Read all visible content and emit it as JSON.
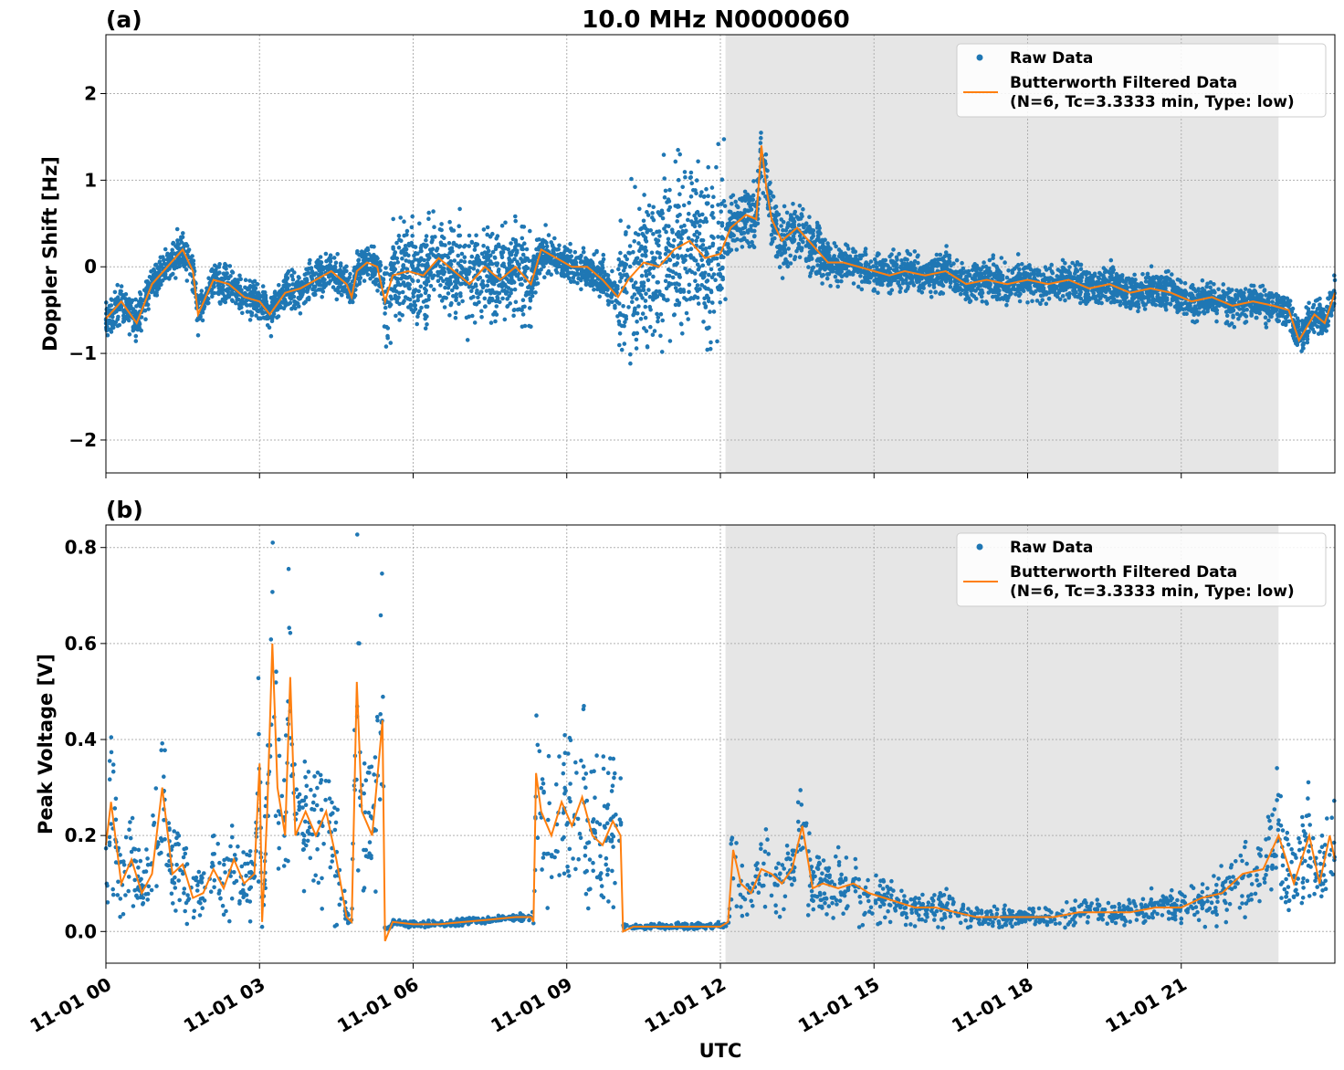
{
  "figure": {
    "title": "10.0 MHz N0000060",
    "xlabel": "UTC"
  },
  "legend": {
    "raw_label": "Raw Data",
    "filtered_label_line1": "Butterworth Filtered Data",
    "filtered_label_line2": "(N=6, Tc=3.3333 min, Type: low)",
    "placement": "top-right"
  },
  "colors": {
    "raw": "#1f77b4",
    "filtered": "#ff7f0e",
    "night_shading": "#e6e6e6",
    "grid": "#b0b0b0"
  },
  "chart_data": [
    {
      "type": "scatter",
      "panel_label": "(a)",
      "ylabel": "Doppler Shift [Hz]",
      "x_unit": "hours since 11-01 00 UTC",
      "xlim": [
        0,
        24
      ],
      "ylim": [
        -2.38,
        2.68
      ],
      "xticks": [
        0,
        3,
        6,
        9,
        12,
        15,
        18,
        21
      ],
      "xtick_labels": [
        "11-01 00",
        "11-01 03",
        "11-01 06",
        "11-01 09",
        "11-01 12",
        "11-01 15",
        "11-01 18",
        "11-01 21"
      ],
      "yticks": [
        -2,
        -1,
        0,
        1,
        2
      ],
      "ytick_labels": [
        "−2",
        "−1",
        "0",
        "1",
        "2"
      ],
      "grid": true,
      "shaded_interval": [
        12.1,
        22.9
      ],
      "series": [
        {
          "name": "Butterworth Filtered Data",
          "kind": "line",
          "points": [
            [
              0,
              -0.6
            ],
            [
              0.3,
              -0.4
            ],
            [
              0.6,
              -0.65
            ],
            [
              0.9,
              -0.2
            ],
            [
              1.2,
              0.0
            ],
            [
              1.5,
              0.2
            ],
            [
              1.7,
              -0.05
            ],
            [
              1.8,
              -0.55
            ],
            [
              2.1,
              -0.15
            ],
            [
              2.4,
              -0.2
            ],
            [
              2.7,
              -0.35
            ],
            [
              3.0,
              -0.4
            ],
            [
              3.2,
              -0.55
            ],
            [
              3.5,
              -0.3
            ],
            [
              3.8,
              -0.25
            ],
            [
              4.1,
              -0.15
            ],
            [
              4.4,
              -0.05
            ],
            [
              4.7,
              -0.2
            ],
            [
              4.8,
              -0.35
            ],
            [
              4.9,
              -0.05
            ],
            [
              5.1,
              0.05
            ],
            [
              5.3,
              0.0
            ],
            [
              5.45,
              -0.4
            ],
            [
              5.6,
              -0.1
            ],
            [
              5.9,
              -0.05
            ],
            [
              6.2,
              -0.1
            ],
            [
              6.5,
              0.1
            ],
            [
              6.8,
              -0.05
            ],
            [
              7.1,
              -0.2
            ],
            [
              7.4,
              0.0
            ],
            [
              7.7,
              -0.15
            ],
            [
              8.0,
              0.0
            ],
            [
              8.3,
              -0.2
            ],
            [
              8.5,
              0.2
            ],
            [
              8.8,
              0.1
            ],
            [
              9.1,
              0.0
            ],
            [
              9.4,
              0.0
            ],
            [
              9.7,
              -0.15
            ],
            [
              10.0,
              -0.35
            ],
            [
              10.2,
              -0.15
            ],
            [
              10.5,
              0.05
            ],
            [
              10.8,
              0.0
            ],
            [
              11.1,
              0.2
            ],
            [
              11.4,
              0.3
            ],
            [
              11.7,
              0.1
            ],
            [
              12.0,
              0.15
            ],
            [
              12.2,
              0.45
            ],
            [
              12.5,
              0.6
            ],
            [
              12.7,
              0.55
            ],
            [
              12.8,
              1.4
            ],
            [
              12.9,
              0.9
            ],
            [
              13.0,
              0.55
            ],
            [
              13.2,
              0.3
            ],
            [
              13.5,
              0.45
            ],
            [
              13.8,
              0.25
            ],
            [
              14.1,
              0.05
            ],
            [
              14.4,
              0.05
            ],
            [
              14.7,
              0.0
            ],
            [
              15.0,
              -0.05
            ],
            [
              15.3,
              -0.1
            ],
            [
              15.6,
              -0.05
            ],
            [
              16.0,
              -0.1
            ],
            [
              16.4,
              -0.05
            ],
            [
              16.8,
              -0.2
            ],
            [
              17.2,
              -0.15
            ],
            [
              17.6,
              -0.2
            ],
            [
              18.0,
              -0.15
            ],
            [
              18.4,
              -0.2
            ],
            [
              18.8,
              -0.15
            ],
            [
              19.2,
              -0.25
            ],
            [
              19.6,
              -0.2
            ],
            [
              20.0,
              -0.3
            ],
            [
              20.4,
              -0.25
            ],
            [
              20.8,
              -0.3
            ],
            [
              21.2,
              -0.4
            ],
            [
              21.6,
              -0.35
            ],
            [
              22.0,
              -0.45
            ],
            [
              22.4,
              -0.4
            ],
            [
              22.8,
              -0.45
            ],
            [
              23.1,
              -0.5
            ],
            [
              23.3,
              -0.85
            ],
            [
              23.6,
              -0.55
            ],
            [
              23.8,
              -0.65
            ],
            [
              24.0,
              -0.3
            ]
          ]
        }
      ]
    },
    {
      "type": "scatter",
      "panel_label": "(b)",
      "ylabel": "Peak Voltage [V]",
      "x_unit": "hours since 11-01 00 UTC",
      "xlim": [
        0,
        24
      ],
      "ylim": [
        -0.066,
        0.847
      ],
      "xticks": [
        0,
        3,
        6,
        9,
        12,
        15,
        18,
        21
      ],
      "xtick_labels": [
        "11-01 00",
        "11-01 03",
        "11-01 06",
        "11-01 09",
        "11-01 12",
        "11-01 15",
        "11-01 18",
        "11-01 21"
      ],
      "yticks": [
        0.0,
        0.2,
        0.4,
        0.6,
        0.8
      ],
      "ytick_labels": [
        "0.0",
        "0.2",
        "0.4",
        "0.6",
        "0.8"
      ],
      "grid": true,
      "shaded_interval": [
        12.1,
        22.9
      ],
      "series": [
        {
          "name": "Butterworth Filtered Data",
          "kind": "line",
          "points": [
            [
              0,
              0.18
            ],
            [
              0.1,
              0.27
            ],
            [
              0.3,
              0.1
            ],
            [
              0.5,
              0.15
            ],
            [
              0.7,
              0.08
            ],
            [
              0.9,
              0.12
            ],
            [
              1.1,
              0.3
            ],
            [
              1.3,
              0.12
            ],
            [
              1.5,
              0.14
            ],
            [
              1.7,
              0.07
            ],
            [
              1.9,
              0.08
            ],
            [
              2.1,
              0.13
            ],
            [
              2.3,
              0.09
            ],
            [
              2.5,
              0.15
            ],
            [
              2.7,
              0.1
            ],
            [
              2.9,
              0.12
            ],
            [
              3.0,
              0.35
            ],
            [
              3.05,
              0.02
            ],
            [
              3.15,
              0.25
            ],
            [
              3.25,
              0.6
            ],
            [
              3.35,
              0.3
            ],
            [
              3.5,
              0.2
            ],
            [
              3.6,
              0.53
            ],
            [
              3.7,
              0.2
            ],
            [
              3.9,
              0.25
            ],
            [
              4.1,
              0.2
            ],
            [
              4.3,
              0.25
            ],
            [
              4.5,
              0.15
            ],
            [
              4.7,
              0.03
            ],
            [
              4.8,
              0.02
            ],
            [
              4.9,
              0.52
            ],
            [
              5.0,
              0.25
            ],
            [
              5.2,
              0.2
            ],
            [
              5.4,
              0.44
            ],
            [
              5.45,
              -0.02
            ],
            [
              5.6,
              0.02
            ],
            [
              6.0,
              0.015
            ],
            [
              6.5,
              0.015
            ],
            [
              7.0,
              0.02
            ],
            [
              7.5,
              0.025
            ],
            [
              8.0,
              0.03
            ],
            [
              8.3,
              0.03
            ],
            [
              8.35,
              0.02
            ],
            [
              8.4,
              0.33
            ],
            [
              8.5,
              0.25
            ],
            [
              8.7,
              0.2
            ],
            [
              8.9,
              0.27
            ],
            [
              9.1,
              0.22
            ],
            [
              9.3,
              0.28
            ],
            [
              9.5,
              0.2
            ],
            [
              9.7,
              0.18
            ],
            [
              9.9,
              0.23
            ],
            [
              10.05,
              0.2
            ],
            [
              10.1,
              0.0
            ],
            [
              10.3,
              0.01
            ],
            [
              11.0,
              0.01
            ],
            [
              11.5,
              0.01
            ],
            [
              12.0,
              0.01
            ],
            [
              12.15,
              0.02
            ],
            [
              12.25,
              0.17
            ],
            [
              12.4,
              0.1
            ],
            [
              12.6,
              0.08
            ],
            [
              12.8,
              0.13
            ],
            [
              13.0,
              0.12
            ],
            [
              13.2,
              0.1
            ],
            [
              13.4,
              0.13
            ],
            [
              13.6,
              0.22
            ],
            [
              13.8,
              0.09
            ],
            [
              14.0,
              0.1
            ],
            [
              14.3,
              0.09
            ],
            [
              14.6,
              0.1
            ],
            [
              14.9,
              0.08
            ],
            [
              15.2,
              0.07
            ],
            [
              15.5,
              0.06
            ],
            [
              15.8,
              0.05
            ],
            [
              16.2,
              0.05
            ],
            [
              16.6,
              0.04
            ],
            [
              17.0,
              0.03
            ],
            [
              17.5,
              0.03
            ],
            [
              18.0,
              0.03
            ],
            [
              18.5,
              0.03
            ],
            [
              19.0,
              0.04
            ],
            [
              19.5,
              0.04
            ],
            [
              20.0,
              0.04
            ],
            [
              20.5,
              0.05
            ],
            [
              21.0,
              0.05
            ],
            [
              21.4,
              0.07
            ],
            [
              21.8,
              0.08
            ],
            [
              22.2,
              0.12
            ],
            [
              22.6,
              0.13
            ],
            [
              22.9,
              0.2
            ],
            [
              23.2,
              0.1
            ],
            [
              23.5,
              0.2
            ],
            [
              23.7,
              0.1
            ],
            [
              23.9,
              0.2
            ],
            [
              24.0,
              0.15
            ]
          ]
        }
      ]
    }
  ]
}
